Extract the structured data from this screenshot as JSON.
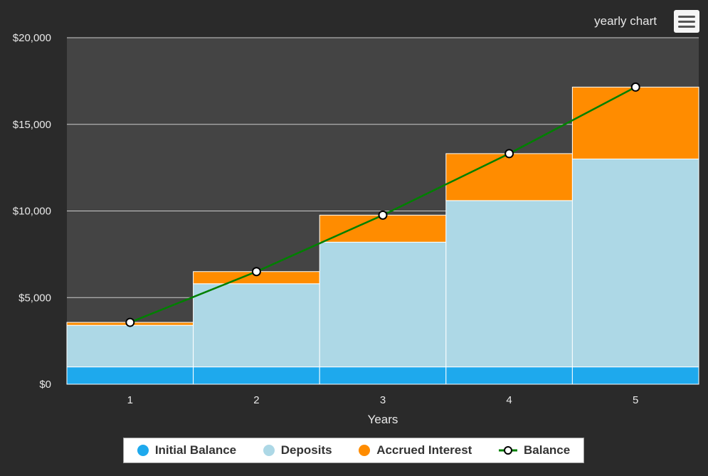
{
  "menu_title": "yearly chart",
  "chart_data": {
    "type": "bar",
    "stacked": true,
    "title": "yearly chart",
    "xlabel": "Years",
    "ylabel": "",
    "categories": [
      "1",
      "2",
      "3",
      "4",
      "5"
    ],
    "ylim": [
      0,
      20000
    ],
    "yticks": [
      0,
      5000,
      10000,
      15000,
      20000
    ],
    "ytick_labels": [
      "$0",
      "$5,000",
      "$10,000",
      "$15,000",
      "$20,000"
    ],
    "grid": true,
    "legend_position": "bottom-center",
    "series": [
      {
        "name": "Initial Balance",
        "type": "bar",
        "color": "#1ea9ed",
        "values": [
          1000,
          1000,
          1000,
          1000,
          1000
        ]
      },
      {
        "name": "Deposits",
        "type": "bar",
        "color": "#add8e6",
        "values": [
          2400,
          4800,
          7200,
          9600,
          12000
        ]
      },
      {
        "name": "Accrued Interest",
        "type": "bar",
        "color": "#ff8c00",
        "values": [
          170,
          700,
          1560,
          2710,
          4150
        ]
      },
      {
        "name": "Balance",
        "type": "line",
        "color": "#008000",
        "values": [
          3570,
          6500,
          9760,
          13310,
          17150
        ]
      }
    ]
  }
}
